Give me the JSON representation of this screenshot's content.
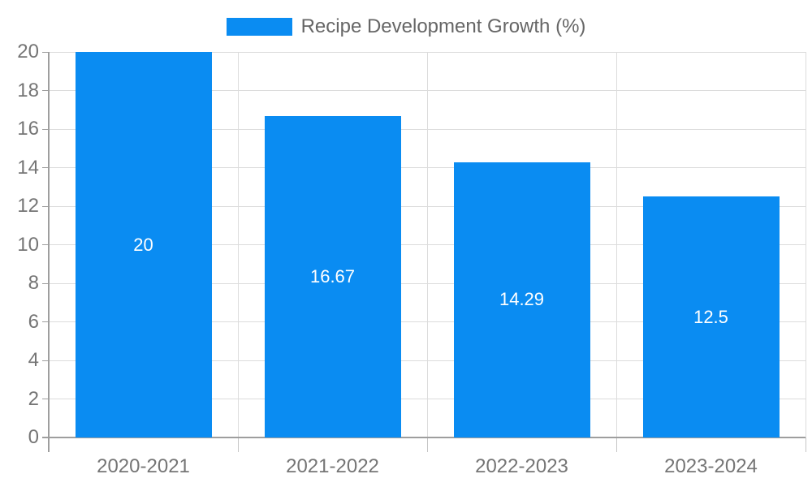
{
  "chart_data": {
    "type": "bar",
    "title": "Recipe Development Growth (%)",
    "legend_entries": [
      "Recipe Development Growth (%)"
    ],
    "legend_position": "top",
    "categories": [
      "2020-2021",
      "2021-2022",
      "2022-2023",
      "2023-2024"
    ],
    "series": [
      {
        "name": "Recipe Development Growth (%)",
        "values": [
          20,
          16.67,
          14.29,
          12.5
        ]
      }
    ],
    "value_labels": [
      "20",
      "16.67",
      "14.29",
      "12.5"
    ],
    "xlabel": "",
    "ylabel": "",
    "ylim": [
      0,
      20
    ],
    "ytick_step": 2,
    "yticks": [
      0,
      2,
      4,
      6,
      8,
      10,
      12,
      14,
      16,
      18,
      20
    ],
    "grid": true,
    "colors": {
      "bar": "#0a8cf2",
      "bar_value_text": "#ffffff",
      "axis_text": "#757575",
      "legend_text": "#666666",
      "grid_line": "#dcdcdc",
      "axis_line": "#9e9e9e",
      "boundary_tick": "#c6c6c6",
      "background": "#ffffff"
    }
  }
}
